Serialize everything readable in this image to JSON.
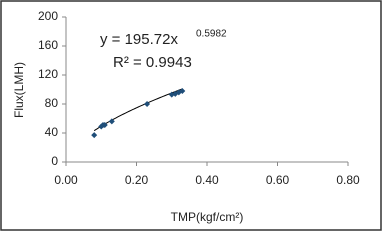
{
  "chart_data": {
    "type": "scatter",
    "x_label": "TMP(kgf/cm²)",
    "y_label": "Flux(LMH)",
    "x": [
      0.08,
      0.1,
      0.105,
      0.11,
      0.13,
      0.23,
      0.3,
      0.31,
      0.32,
      0.33
    ],
    "values": [
      37,
      49,
      51,
      51,
      56,
      80,
      93,
      94,
      96,
      98
    ],
    "color": "#1f4e79",
    "xlim": [
      0,
      0.8
    ],
    "xticks": [
      {
        "value": 0,
        "label": "0.00"
      },
      {
        "value": 0.2,
        "label": "0.20"
      },
      {
        "value": 0.4,
        "label": "0.40"
      },
      {
        "value": 0.6,
        "label": "0.60"
      },
      {
        "value": 0.8,
        "label": "0.80"
      }
    ],
    "ylim": [
      0,
      200
    ],
    "yticks": [
      0,
      40,
      80,
      120,
      160,
      200
    ],
    "trendline": {
      "coefficient": 195.72,
      "exponent": 0.5982,
      "label": "y = 195.72x",
      "exponent_label": "0.5982",
      "r_squared_label": "R² = 0.9943"
    }
  }
}
